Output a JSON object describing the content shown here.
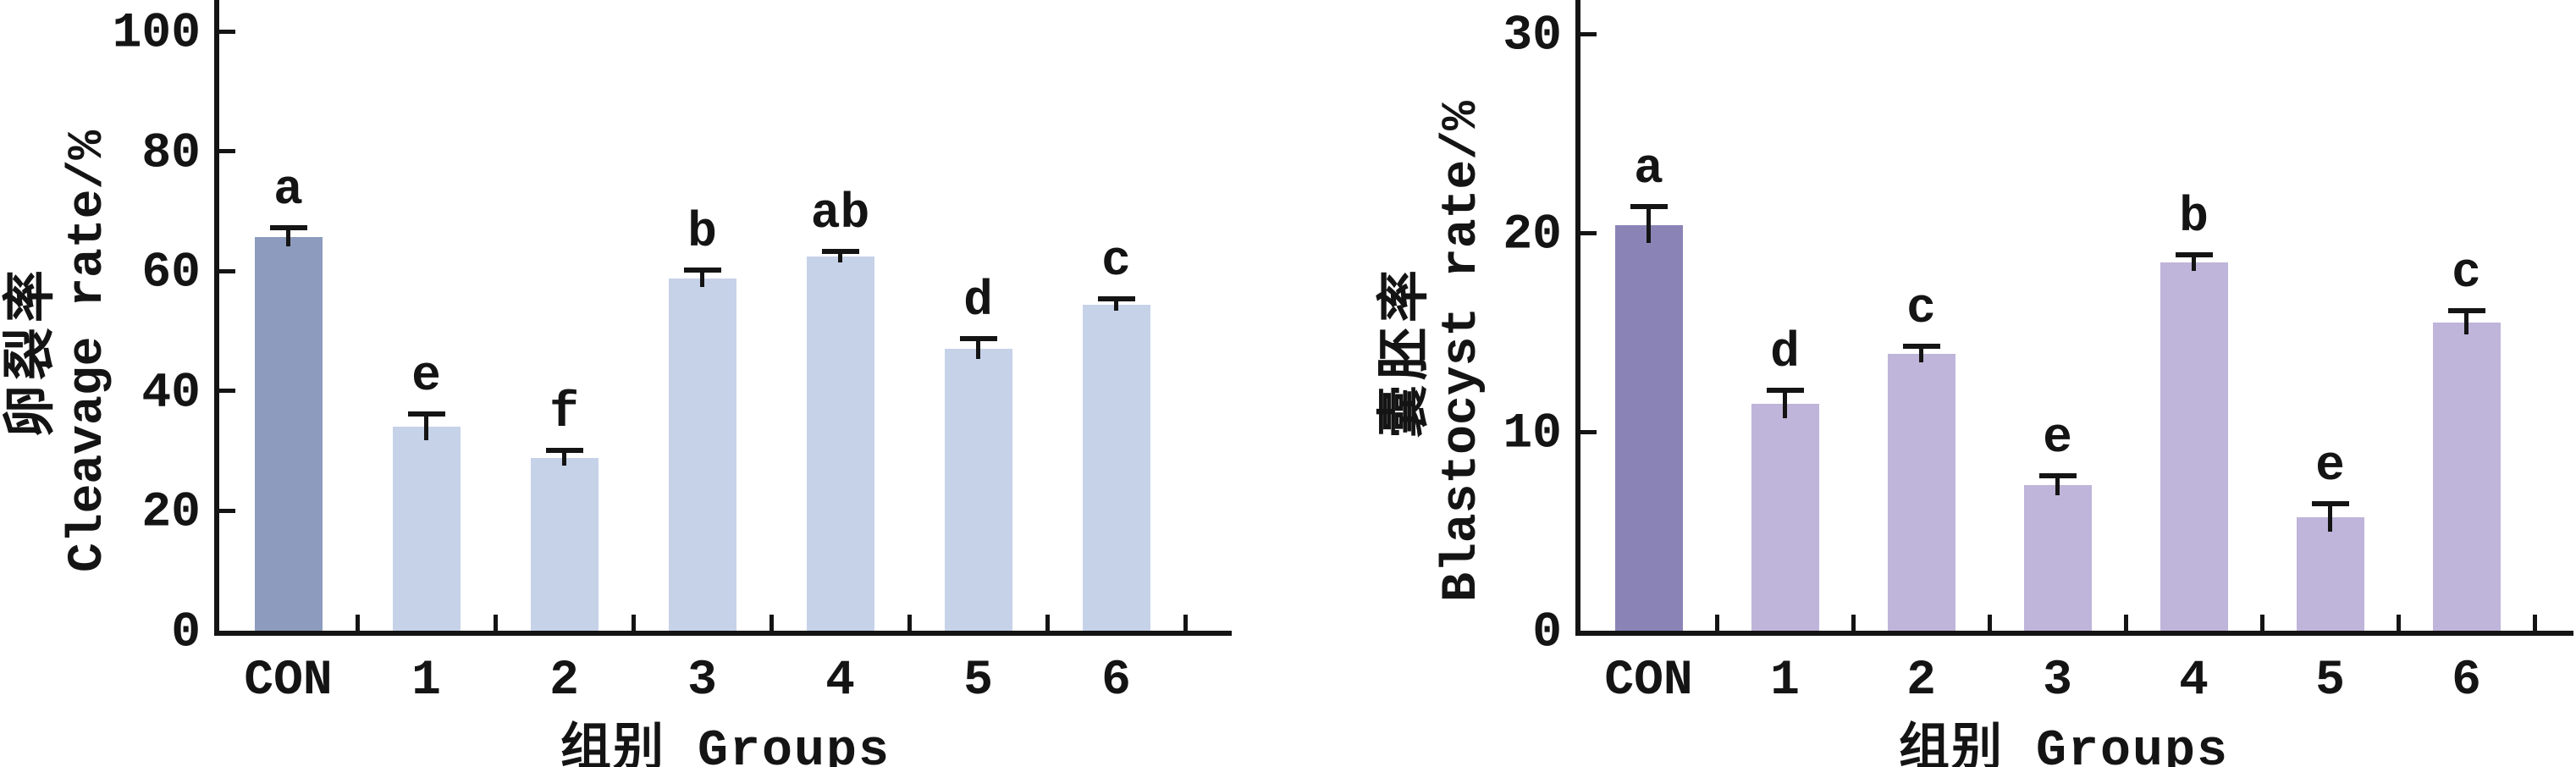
{
  "figure": {
    "background": "#ffffff",
    "text_color": "#141414",
    "description": "Two bar charts with error bars and significance letters"
  },
  "chart_data": [
    {
      "type": "bar",
      "id": "cleavage-rate",
      "ylabel_zh": "卵裂率",
      "ylabel_en": "Cleavage rate/%",
      "xlabel": "组别 Groups",
      "categories": [
        "CON",
        "1",
        "2",
        "3",
        "4",
        "5",
        "6"
      ],
      "values": [
        65.7,
        34.0,
        28.8,
        58.8,
        62.4,
        47.1,
        54.4
      ],
      "errors": [
        1.6,
        2.2,
        1.3,
        1.4,
        0.9,
        1.7,
        1.0
      ],
      "sig_letters": [
        "a",
        "e",
        "f",
        "b",
        "ab",
        "d",
        "c"
      ],
      "yticks": [
        0,
        20,
        40,
        60,
        80,
        100
      ],
      "ylim": [
        0,
        105
      ],
      "grid": false,
      "legend": "none",
      "bar_colors": [
        "#8D9BBE",
        "#C6D2E8",
        "#C6D2E8",
        "#C6D2E8",
        "#C6D2E8",
        "#C6D2E8",
        "#C6D2E8"
      ],
      "error_bar_color": "#141414"
    },
    {
      "type": "bar",
      "id": "blastocyst-rate",
      "ylabel_zh": "囊胚率",
      "ylabel_en": "Blastocyst rate/%",
      "xlabel": "组别 Groups",
      "categories": [
        "CON",
        "1",
        "2",
        "3",
        "4",
        "5",
        "6"
      ],
      "values": [
        20.4,
        11.4,
        13.9,
        7.3,
        18.5,
        5.7,
        15.5
      ],
      "errors": [
        0.9,
        0.7,
        0.4,
        0.5,
        0.4,
        0.7,
        0.6
      ],
      "sig_letters": [
        "a",
        "d",
        "c",
        "e",
        "b",
        "e",
        "c"
      ],
      "yticks": [
        0,
        10,
        20,
        30
      ],
      "ylim": [
        0,
        31.7
      ],
      "grid": false,
      "legend": "none",
      "bar_colors": [
        "#8A84B6",
        "#BFB4D9",
        "#BFB4D9",
        "#BFB4D9",
        "#BFB4D9",
        "#BFB4D9",
        "#BFB4D9"
      ],
      "error_bar_color": "#141414"
    }
  ]
}
